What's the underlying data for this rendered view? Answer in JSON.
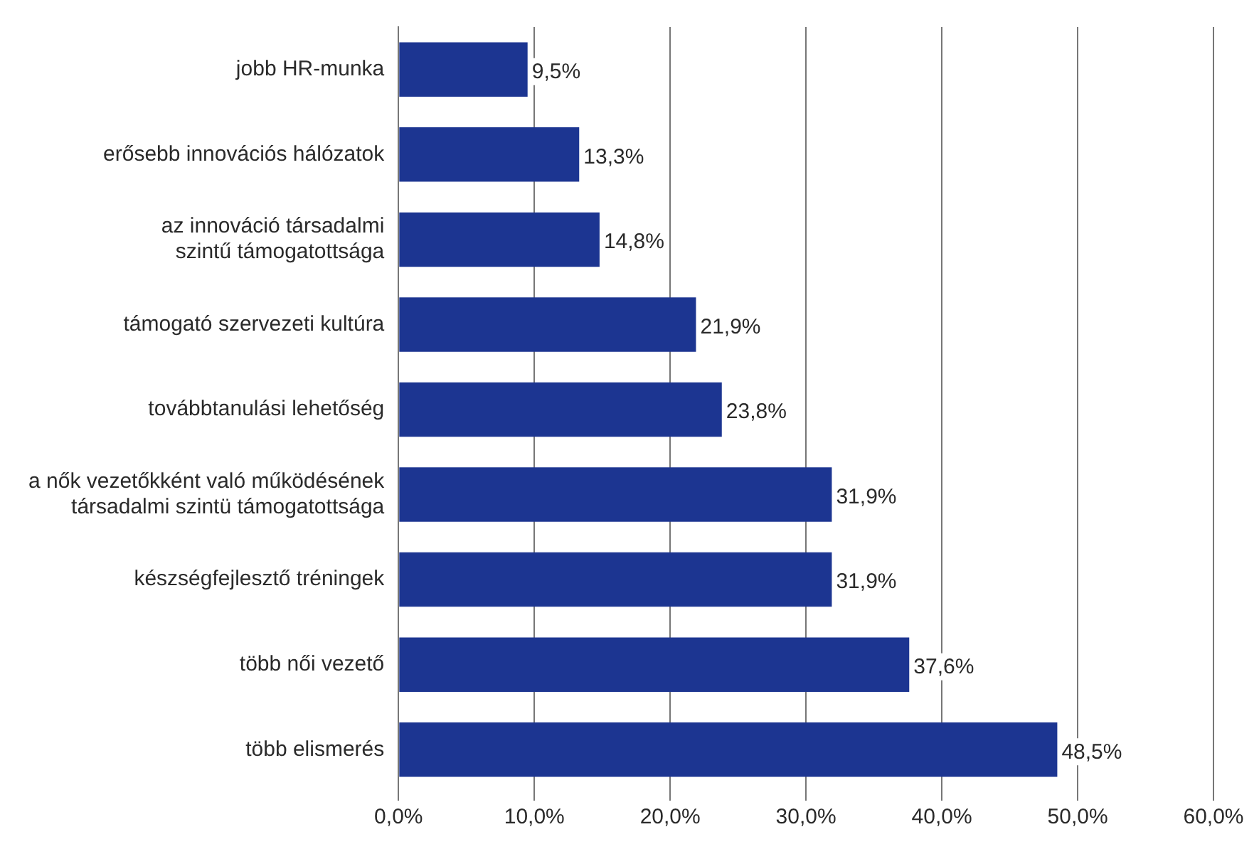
{
  "chart_data": {
    "type": "bar",
    "orientation": "horizontal",
    "categories": [
      "jobb HR-munka",
      "erősebb innovációs hálózatok",
      "az innováció társadalmi\nszintű támogatottsága",
      "támogató szervezeti kultúra",
      "továbbtanulási lehetőség",
      "a nők vezetőkként való működésének\ntársadalmi szintü támogatottsága",
      "készségfejlesztő tréningek",
      "több női vezető",
      "több elismerés"
    ],
    "values": [
      9.5,
      13.3,
      14.8,
      21.9,
      23.8,
      31.9,
      31.9,
      37.6,
      48.5
    ],
    "value_labels": [
      "9,5%",
      "13,3%",
      "14,8%",
      "21,9%",
      "23,8%",
      "31,9%",
      "31,9%",
      "37,6%",
      "48,5%"
    ],
    "color": "#1c3591",
    "xlim": [
      0,
      60
    ],
    "xticks": [
      {
        "value": 0,
        "label": "0,0%"
      },
      {
        "value": 10,
        "label": "10,0%"
      },
      {
        "value": 20,
        "label": "20,0%"
      },
      {
        "value": 30,
        "label": "30,0%"
      },
      {
        "value": 40,
        "label": "40,0%"
      },
      {
        "value": 50,
        "label": "50,0%"
      },
      {
        "value": 60,
        "label": "60,0%"
      }
    ],
    "grid": "x"
  }
}
